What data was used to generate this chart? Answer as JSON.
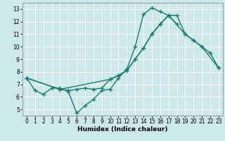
{
  "xlabel": "Humidex (Indice chaleur)",
  "bg_color": "#cce8e8",
  "grid_color": "#ffffff",
  "line_color": "#1a7a6e",
  "xlim": [
    -0.5,
    23.5
  ],
  "ylim": [
    4.5,
    13.5
  ],
  "xticks": [
    0,
    1,
    2,
    3,
    4,
    5,
    6,
    7,
    8,
    9,
    10,
    11,
    12,
    13,
    14,
    15,
    16,
    17,
    18,
    19,
    20,
    21,
    22,
    23
  ],
  "yticks": [
    5,
    6,
    7,
    8,
    9,
    10,
    11,
    12,
    13
  ],
  "line1_x": [
    0,
    1,
    2,
    3,
    4,
    5,
    6,
    7,
    8,
    9,
    10,
    11,
    12,
    13,
    14,
    15,
    16,
    17,
    18
  ],
  "line1_y": [
    7.5,
    6.5,
    6.2,
    6.7,
    6.7,
    6.4,
    4.7,
    5.3,
    5.8,
    6.5,
    6.6,
    7.5,
    8.2,
    10.0,
    12.6,
    13.1,
    12.8,
    12.5,
    11.8
  ],
  "line2_x": [
    0,
    4,
    5,
    6,
    7,
    8,
    9,
    10,
    11,
    12,
    13,
    14,
    15,
    16,
    17,
    18,
    19,
    20,
    21,
    22,
    23
  ],
  "line2_y": [
    7.5,
    6.6,
    6.5,
    6.6,
    6.7,
    6.6,
    6.7,
    7.4,
    7.7,
    8.1,
    9.0,
    9.9,
    11.0,
    11.8,
    12.5,
    12.5,
    11.0,
    10.5,
    10.0,
    9.5,
    8.3
  ],
  "line3_x": [
    0,
    4,
    10,
    11,
    12,
    13,
    14,
    15,
    16,
    17,
    19,
    20,
    21,
    23
  ],
  "line3_y": [
    7.5,
    6.6,
    7.4,
    7.7,
    8.1,
    9.0,
    9.9,
    11.0,
    11.8,
    12.5,
    11.0,
    10.5,
    10.0,
    8.3
  ],
  "marker": "+",
  "markersize": 4,
  "linewidth": 1.0
}
